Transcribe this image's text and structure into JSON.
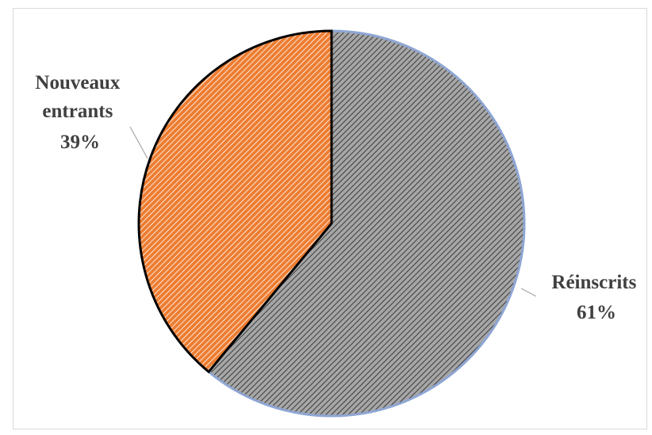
{
  "chart_data": {
    "type": "pie",
    "categories": [
      "Réinscrits",
      "Nouveaux entrants"
    ],
    "values": [
      61,
      39
    ],
    "percent_labels": [
      "61%",
      "39%"
    ],
    "label_lines": [
      [
        "Réinscrits",
        "61%"
      ],
      [
        "Nouveaux",
        "entrants",
        "39%"
      ]
    ],
    "start_angle_deg": 0,
    "direction": "clockwise",
    "colors": {
      "slice_reinscrits_base": "#a6a6a6",
      "slice_reinscrits_hatch": "#3b3b3b",
      "slice_reinscrits_border": "#8ea6d4",
      "slice_nouveaux_base": "#ed7d31",
      "slice_nouveaux_hatch": "#ffffff",
      "slice_nouveaux_border": "#000000",
      "label_text": "#404040",
      "leader_line": "#a6a6a6"
    },
    "legend": "none"
  }
}
